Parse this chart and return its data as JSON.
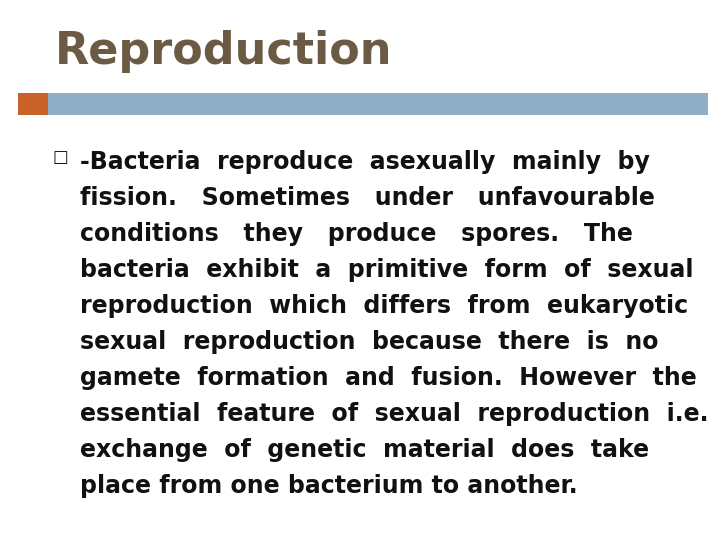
{
  "title": "Reproduction",
  "title_color": "#6B5B45",
  "title_fontsize": 32,
  "bar_color_orange": "#C8622A",
  "bar_color_blue": "#8FAFC8",
  "bullet_char": "□",
  "body_lines": [
    "-Bacteria  reproduce  asexually  mainly  by",
    "fission.   Sometimes   under   unfavourable",
    "conditions   they   produce   spores.   The",
    "bacteria  exhibit  a  primitive  form  of  sexual",
    "reproduction  which  differs  from  eukaryotic",
    "sexual  reproduction  because  there  is  no",
    "gamete  formation  and  fusion.  However  the",
    "essential  feature  of  sexual  reproduction  i.e.",
    "exchange  of  genetic  material  does  take",
    "place from one bacterium to another."
  ],
  "body_fontsize": 17,
  "body_color": "#111111",
  "bg_color": "#ffffff"
}
